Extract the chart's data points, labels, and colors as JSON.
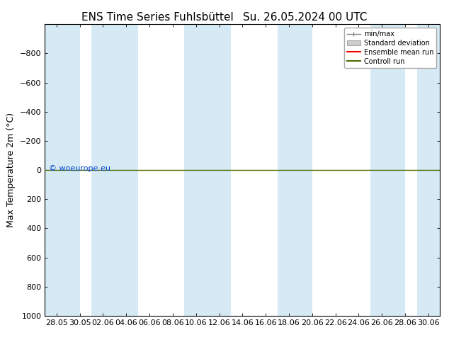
{
  "title_left": "ENS Time Series Fuhlsbüttel",
  "title_right": "Su. 26.05.2024 00 UTC",
  "ylabel": "Max Temperature 2m (°C)",
  "ylim": [
    -1000,
    1000
  ],
  "yticks": [
    -800,
    -600,
    -400,
    -200,
    0,
    200,
    400,
    600,
    800,
    1000
  ],
  "x_dates": [
    "28.05",
    "30.05",
    "02.06",
    "04.06",
    "06.06",
    "08.06",
    "10.06",
    "12.06",
    "14.06",
    "16.06",
    "18.06",
    "20.06",
    "22.06",
    "24.06",
    "26.06",
    "28.06",
    "30.06"
  ],
  "band_color": "#d6eaf5",
  "band_indices": [
    0,
    4,
    8,
    12,
    16
  ],
  "band_widths": [
    1.5,
    1.5,
    1.5,
    1.5,
    0.6
  ],
  "legend_labels": [
    "min/max",
    "Standard deviation",
    "Ensemble mean run",
    "Controll run"
  ],
  "ensemble_mean_color": "#ff0000",
  "control_run_color": "#4a6a00",
  "watermark": "© woeurope.eu",
  "watermark_color": "#0044cc",
  "background_color": "#ffffff",
  "title_fontsize": 11,
  "ylabel_fontsize": 9,
  "tick_fontsize": 8
}
